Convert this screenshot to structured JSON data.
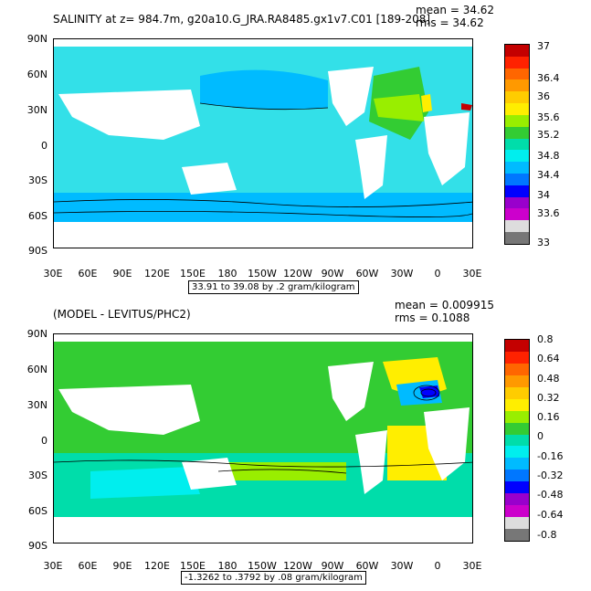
{
  "top": {
    "title": "SALINITY at z= 984.7m, g20a10.G_JRA.RA8485.gx1v7.C01 [189-208]",
    "mean": "mean = 34.62",
    "rms": "rms = 34.62",
    "range_note": "33.91 to 39.08 by .2 gram/kilogram",
    "colorbar_labels": [
      "37",
      "36.4",
      "36",
      "35.6",
      "35.2",
      "34.8",
      "34.4",
      "34",
      "33.6",
      "33"
    ],
    "colorbar_colors": [
      "#c40000",
      "#ff2200",
      "#ff6600",
      "#ff9900",
      "#ffcc00",
      "#ffee00",
      "#99ee00",
      "#33cc33",
      "#00ddaa",
      "#00eeee",
      "#00bbff",
      "#0077ff",
      "#0000ff",
      "#9900cc",
      "#cc00cc",
      "#dddddd",
      "#777777"
    ]
  },
  "bottom": {
    "title": "(MODEL - LEVITUS/PHC2)",
    "mean": "mean = 0.009915",
    "rms": "rms = 0.1088",
    "range_note": "-1.3262 to .3792 by .08 gram/kilogram",
    "colorbar_labels": [
      "0.8",
      "0.64",
      "0.48",
      "0.32",
      "0.16",
      "0",
      "-0.16",
      "-0.32",
      "-0.48",
      "-0.64",
      "-0.8"
    ],
    "colorbar_colors": [
      "#c40000",
      "#ff2200",
      "#ff6600",
      "#ff9900",
      "#ffcc00",
      "#ffee00",
      "#99ee00",
      "#33cc33",
      "#00ddaa",
      "#00eeee",
      "#00bbff",
      "#0077ff",
      "#0000ff",
      "#9900cc",
      "#cc00cc",
      "#dddddd",
      "#777777"
    ]
  },
  "axes": {
    "lat_labels": [
      "90N",
      "60N",
      "30N",
      "0",
      "30S",
      "60S",
      "90S"
    ],
    "lon_labels": [
      "30E",
      "60E",
      "90E",
      "120E",
      "150E",
      "180",
      "150W",
      "120W",
      "90W",
      "60W",
      "30W",
      "0",
      "30E"
    ]
  }
}
